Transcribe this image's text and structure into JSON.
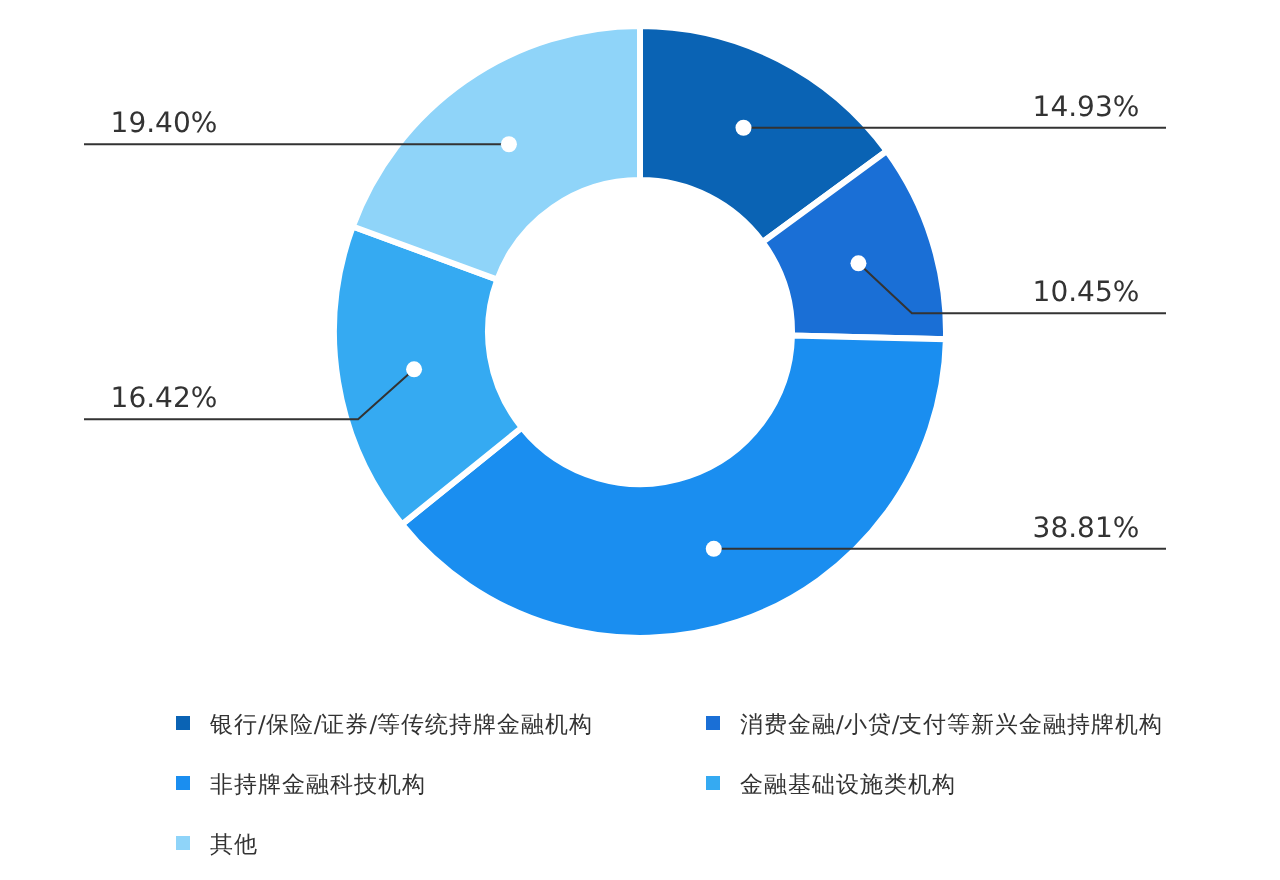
{
  "chart_data": {
    "type": "donut",
    "categories": [
      "银行/保险/证券/等传统持牌金融机构",
      "消费金融/小贷/支付等新兴金融持牌机构",
      "非持牌金融科技机构",
      "金融基础设施类机构",
      "其他"
    ],
    "values": [
      14.93,
      10.45,
      38.81,
      16.42,
      19.4
    ],
    "value_labels": [
      "14.93%",
      "10.45%",
      "38.81%",
      "16.42%",
      "19.40%"
    ],
    "colors": [
      "#0a63b4",
      "#1a6fd6",
      "#1a8ef0",
      "#35aaf2",
      "#8fd4f9"
    ],
    "legend": "bottom"
  }
}
